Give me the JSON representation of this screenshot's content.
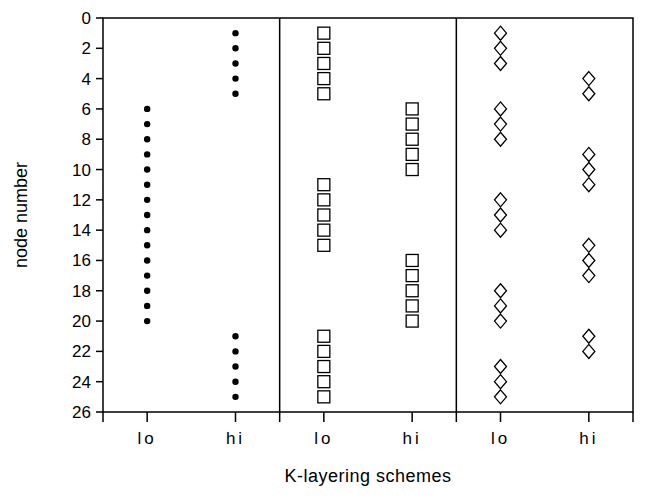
{
  "chart_data": {
    "type": "strip",
    "xlabel": "K-layering schemes",
    "ylabel": "node number",
    "categories": [
      "lo",
      "hi",
      "lo",
      "hi",
      "lo",
      "hi"
    ],
    "ylim": [
      26,
      0
    ],
    "yticks": [
      0,
      2,
      4,
      6,
      8,
      10,
      12,
      14,
      16,
      18,
      20,
      22,
      24,
      26
    ],
    "series": [
      {
        "marker": "circle",
        "color": "#000000",
        "values": [
          [
            6,
            7,
            8,
            9,
            10,
            11,
            12,
            13,
            14,
            15,
            16,
            17,
            18,
            19,
            20
          ],
          [
            1,
            2,
            3,
            4,
            5,
            21,
            22,
            23,
            24,
            25
          ],
          null,
          null,
          null,
          null
        ]
      },
      {
        "marker": "square",
        "color": "#000000",
        "values": [
          null,
          null,
          [
            1,
            2,
            3,
            4,
            5,
            11,
            12,
            13,
            14,
            15,
            21,
            22,
            23,
            24,
            25
          ],
          [
            6,
            7,
            8,
            9,
            10,
            16,
            17,
            18,
            19,
            20
          ],
          null,
          null
        ]
      },
      {
        "marker": "diamond",
        "color": "#000000",
        "values": [
          null,
          null,
          null,
          null,
          [
            1,
            2,
            3,
            6,
            7,
            8,
            12,
            13,
            14,
            18,
            19,
            20,
            23,
            24,
            25
          ],
          [
            4,
            5,
            9,
            10,
            11,
            15,
            16,
            17,
            21,
            22
          ]
        ]
      }
    ]
  }
}
